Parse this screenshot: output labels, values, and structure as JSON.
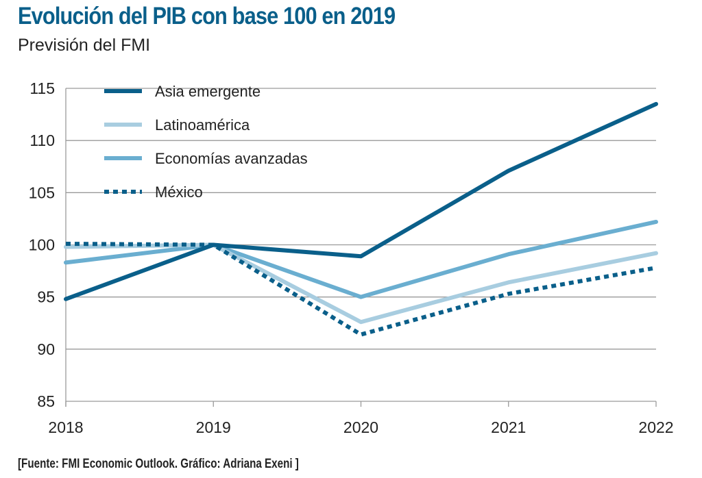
{
  "chart_data": {
    "type": "line",
    "title": "Evolución del PIB con base 100 en 2019",
    "subtitle": "Previsión del FMI",
    "source": "[Fuente: FMI Economic Outlook. Gráfico: Adriana Exeni ]",
    "xlabel": "",
    "ylabel": "",
    "x": [
      "2018",
      "2019",
      "2020",
      "2021",
      "2022"
    ],
    "ylim": [
      85,
      115
    ],
    "yticks": [
      85,
      90,
      95,
      100,
      105,
      110,
      115
    ],
    "grid": true,
    "legend_position": "top-left",
    "series": [
      {
        "name": "Asia emergente",
        "color": "#0a5f8a",
        "style": "solid",
        "values": [
          94.8,
          100,
          98.9,
          107.1,
          113.5
        ]
      },
      {
        "name": "Latinoamérica",
        "color": "#a8cde0",
        "style": "solid",
        "values": [
          99.8,
          100,
          92.6,
          96.4,
          99.2
        ]
      },
      {
        "name": "Economías avanzadas",
        "color": "#6aaed0",
        "style": "solid",
        "values": [
          98.3,
          100,
          95.0,
          99.1,
          102.2
        ]
      },
      {
        "name": "México",
        "color": "#0a5f8a",
        "style": "dotted",
        "values": [
          100.1,
          100,
          91.4,
          95.3,
          97.8
        ]
      }
    ]
  }
}
